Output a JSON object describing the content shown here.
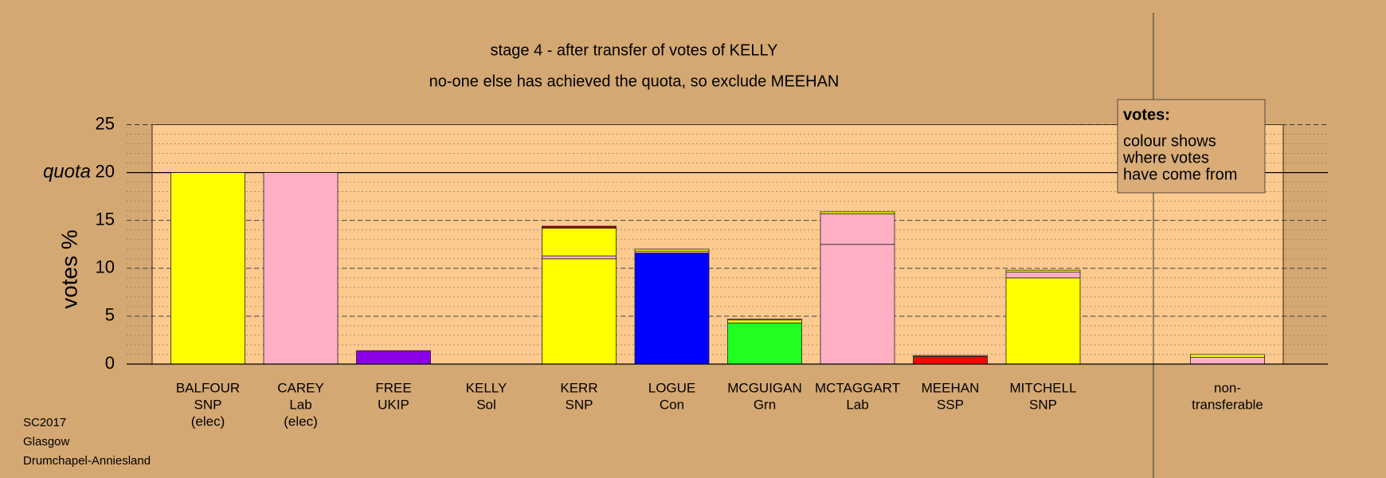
{
  "chart_data": {
    "type": "stacked-bar",
    "title": "stage 4 - after transfer of votes of KELLY",
    "subtitle": "no-one else has achieved the quota, so exclude MEEHAN",
    "y_label": "votes %",
    "quota": {
      "label": "quota",
      "value": 20
    },
    "categories": [
      [
        "BALFOUR",
        "SNP",
        "(elec)"
      ],
      [
        "CAREY",
        "Lab",
        "(elec)"
      ],
      [
        "FREE",
        "UKIP"
      ],
      [
        "KELLY",
        "Sol"
      ],
      [
        "KERR",
        "SNP"
      ],
      [
        "LOGUE",
        "Con"
      ],
      [
        "MCGUIGAN",
        "Grn"
      ],
      [
        "MCTAGGART",
        "Lab"
      ],
      [
        "MEEHAN",
        "SSP"
      ],
      [
        "MITCHELL",
        "SNP"
      ],
      [
        "non-",
        "transferable"
      ]
    ],
    "segments": [
      [
        20
      ],
      [
        20
      ],
      [
        1.4
      ],
      [
        0
      ],
      [
        11.0,
        0.3,
        2.9,
        0.2
      ],
      [
        11.6,
        0.2,
        0.2
      ],
      [
        4.3,
        0.3,
        0.1
      ],
      [
        12.5,
        3.2,
        0.2
      ],
      [
        0.8,
        0.1
      ],
      [
        9.0,
        0.6,
        0.2
      ],
      [
        0.7,
        0.3
      ]
    ],
    "segment_colors": [
      [
        "#ffff00"
      ],
      [
        "#ffb0c4"
      ],
      [
        "#8a00e6"
      ],
      [
        "#800080"
      ],
      [
        "#ffff00",
        "#ffb0c4",
        "#ffff00",
        "#a00000"
      ],
      [
        "#0000ff",
        "#ffb0c4",
        "#ffff00"
      ],
      [
        "#20ff20",
        "#ffff00",
        "#ffb0c4"
      ],
      [
        "#ffb0c4",
        "#ffb0c4",
        "#ffff00"
      ],
      [
        "#ff0000",
        "#ffb0c4"
      ],
      [
        "#ffff00",
        "#ffb0c4",
        "#ffff00"
      ],
      [
        "#ffb0c4",
        "#ffff00"
      ]
    ],
    "ylim": [
      0,
      25
    ],
    "yticks": [
      0,
      5,
      10,
      15,
      20,
      25
    ],
    "grid": true,
    "minor_grid_step": 1,
    "legend": {
      "title": "votes:",
      "lines": [
        "colour shows",
        "where votes",
        "have come from"
      ]
    },
    "footer": [
      "SC2017",
      "Glasgow",
      "Drumchapel-Anniesland"
    ]
  }
}
